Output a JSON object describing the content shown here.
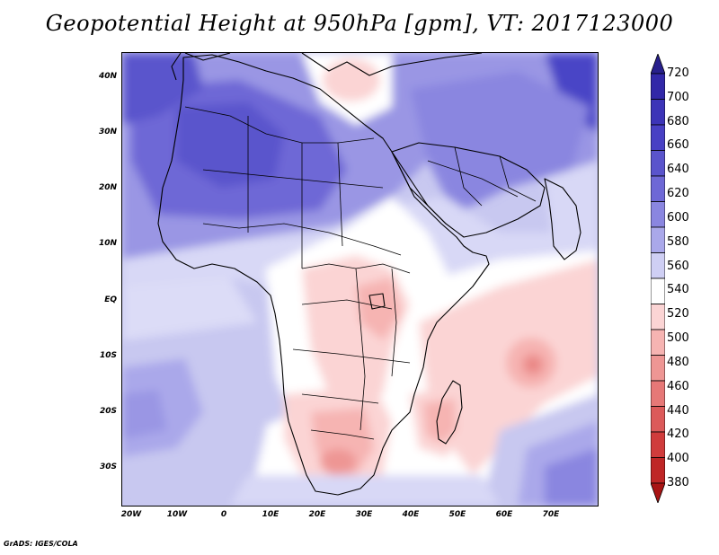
{
  "title": "Geopotential Height at 950hPa [gpm], VT: 2017123000",
  "credit": "GrADS: IGES/COLA",
  "map": {
    "lat_labels": [
      "40N",
      "30N",
      "20N",
      "10N",
      "EQ",
      "10S",
      "20S",
      "30S"
    ],
    "lon_labels": [
      "20W",
      "10W",
      "0",
      "10E",
      "20E",
      "30E",
      "40E",
      "50E",
      "60E",
      "70E"
    ],
    "domain": {
      "lon_min": -22,
      "lon_max": 80,
      "lat_min": -37,
      "lat_max": 45
    }
  },
  "colorbar": {
    "labels": [
      "720",
      "700",
      "680",
      "660",
      "640",
      "620",
      "600",
      "580",
      "560",
      "540",
      "520",
      "500",
      "480",
      "460",
      "440",
      "420",
      "400",
      "380"
    ],
    "colors": [
      "#28208c",
      "#3228a8",
      "#3c34b8",
      "#4840c4",
      "#5a54cc",
      "#6e68d6",
      "#8a86e0",
      "#aaa8ea",
      "#cfcff4",
      "#ffffff",
      "#fbd4d4",
      "#f6b4b2",
      "#ee9694",
      "#e67877",
      "#dc5a5a",
      "#d03c3c",
      "#bf2626",
      "#a81414"
    ]
  }
}
